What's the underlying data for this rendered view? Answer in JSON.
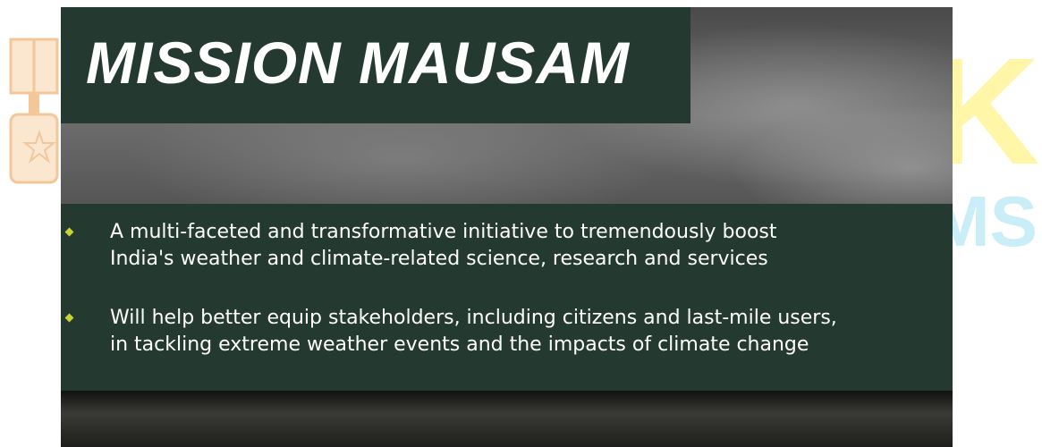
{
  "slide": {
    "title": "MISSION MAUSAM",
    "bullets": [
      {
        "lines": [
          "A multi-faceted and transformative initiative to tremendously boost",
          "India's weather and climate-related science, research and services"
        ]
      },
      {
        "lines": [
          "Will help better equip stakeholders, including citizens and last-mile users,",
          "in tackling extreme weather events and the impacts of climate change"
        ]
      }
    ]
  },
  "watermark": {
    "letter": "K",
    "text": "MS"
  }
}
